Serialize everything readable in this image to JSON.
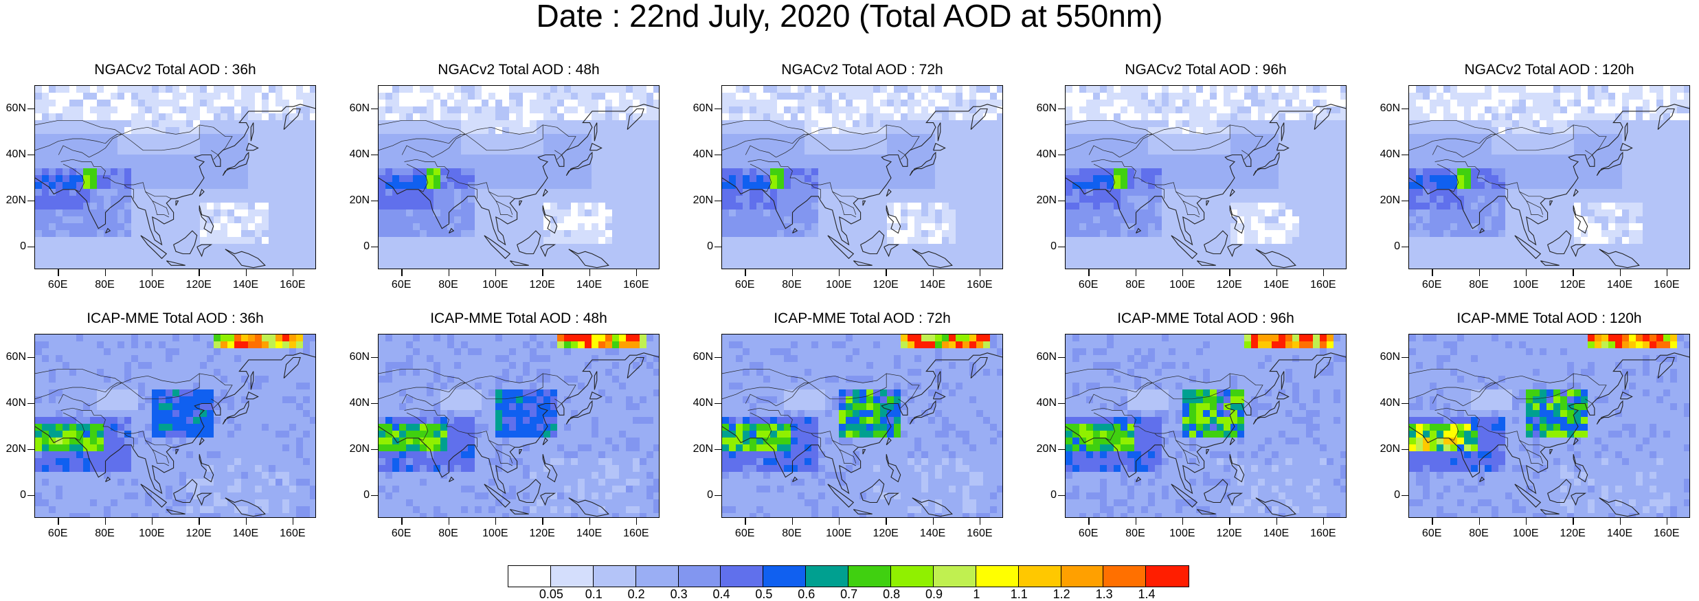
{
  "title": "Date : 22nd July, 2020 (Total AOD at 550nm)",
  "lat_labels": [
    "60N",
    "40N",
    "20N",
    "0"
  ],
  "lat_values": [
    60,
    40,
    20,
    0
  ],
  "lon_labels": [
    "60E",
    "80E",
    "100E",
    "120E",
    "140E",
    "160E"
  ],
  "lon_values": [
    60,
    80,
    100,
    120,
    140,
    160
  ],
  "lon_range": [
    50,
    170
  ],
  "lat_range": [
    -10,
    70
  ],
  "panels": [
    {
      "title": "NGACv2 Total AOD : 36h",
      "model": "NGACv2",
      "lead_hours": 36
    },
    {
      "title": "NGACv2 Total AOD : 48h",
      "model": "NGACv2",
      "lead_hours": 48
    },
    {
      "title": "NGACv2 Total AOD : 72h",
      "model": "NGACv2",
      "lead_hours": 72
    },
    {
      "title": "NGACv2 Total AOD : 96h",
      "model": "NGACv2",
      "lead_hours": 96
    },
    {
      "title": "NGACv2 Total AOD : 120h",
      "model": "NGACv2",
      "lead_hours": 120
    },
    {
      "title": "ICAP-MME Total AOD : 36h",
      "model": "ICAP-MME",
      "lead_hours": 36
    },
    {
      "title": "ICAP-MME Total AOD : 48h",
      "model": "ICAP-MME",
      "lead_hours": 48
    },
    {
      "title": "ICAP-MME Total AOD : 72h",
      "model": "ICAP-MME",
      "lead_hours": 72
    },
    {
      "title": "ICAP-MME Total AOD : 96h",
      "model": "ICAP-MME",
      "lead_hours": 96
    },
    {
      "title": "ICAP-MME Total AOD : 120h",
      "model": "ICAP-MME",
      "lead_hours": 120
    }
  ],
  "colorbar": {
    "labels": [
      "0.05",
      "0.1",
      "0.2",
      "0.3",
      "0.4",
      "0.5",
      "0.6",
      "0.7",
      "0.8",
      "0.9",
      "1",
      "1.1",
      "1.2",
      "1.3",
      "1.4"
    ],
    "colors": [
      "#ffffff",
      "#d4defc",
      "#b4c4f8",
      "#9aaef4",
      "#8296f0",
      "#6070ec",
      "#1060f0",
      "#00a090",
      "#40d010",
      "#90f000",
      "#c0f050",
      "#ffff00",
      "#ffc800",
      "#ffa000",
      "#ff7000",
      "#ff1e00"
    ]
  }
}
